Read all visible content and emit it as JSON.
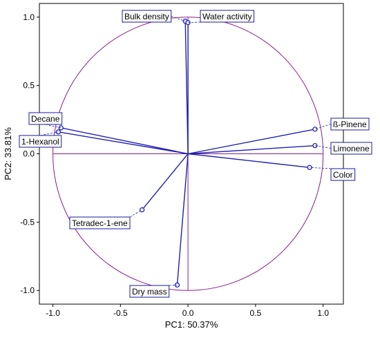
{
  "chart_data": {
    "type": "scatter",
    "subtype": "pca-correlation-circle",
    "xlabel": "PC1: 50.37%",
    "ylabel": "PC2: 33.81%",
    "xlim": [
      -1.1,
      1.15
    ],
    "ylim": [
      -1.1,
      1.1
    ],
    "xticks": [
      -1.0,
      -0.5,
      0.0,
      0.5,
      1.0
    ],
    "xtick_labels": [
      "-1.0",
      "-0.5",
      "0.0",
      "0.5",
      "1.0"
    ],
    "yticks": [
      -1.0,
      -0.5,
      0.0,
      0.5,
      1.0
    ],
    "ytick_labels": [
      "-1.0",
      "-0.5",
      "0.0",
      "0.5",
      "1.0"
    ],
    "grid": false,
    "unit_circle": true,
    "variables": [
      {
        "name": "Bulk density",
        "x": -0.02,
        "y": 0.97
      },
      {
        "name": "Water activity",
        "x": 0.0,
        "y": 0.96
      },
      {
        "name": "Decane",
        "x": -0.94,
        "y": 0.19
      },
      {
        "name": "1-Hexanol",
        "x": -0.96,
        "y": 0.16
      },
      {
        "name": "ß-Pinene",
        "x": 0.94,
        "y": 0.18
      },
      {
        "name": "Limonene",
        "x": 0.94,
        "y": 0.06
      },
      {
        "name": "Color",
        "x": 0.9,
        "y": -0.1
      },
      {
        "name": "Tetradec-1-ene",
        "x": -0.34,
        "y": -0.41
      },
      {
        "name": "Dry mass",
        "x": -0.08,
        "y": -0.96
      }
    ]
  },
  "colors": {
    "circle": "#8b1a8b",
    "vector": "#1f1fb4",
    "label_border": "#1a1a9c",
    "frame": "#000000"
  }
}
